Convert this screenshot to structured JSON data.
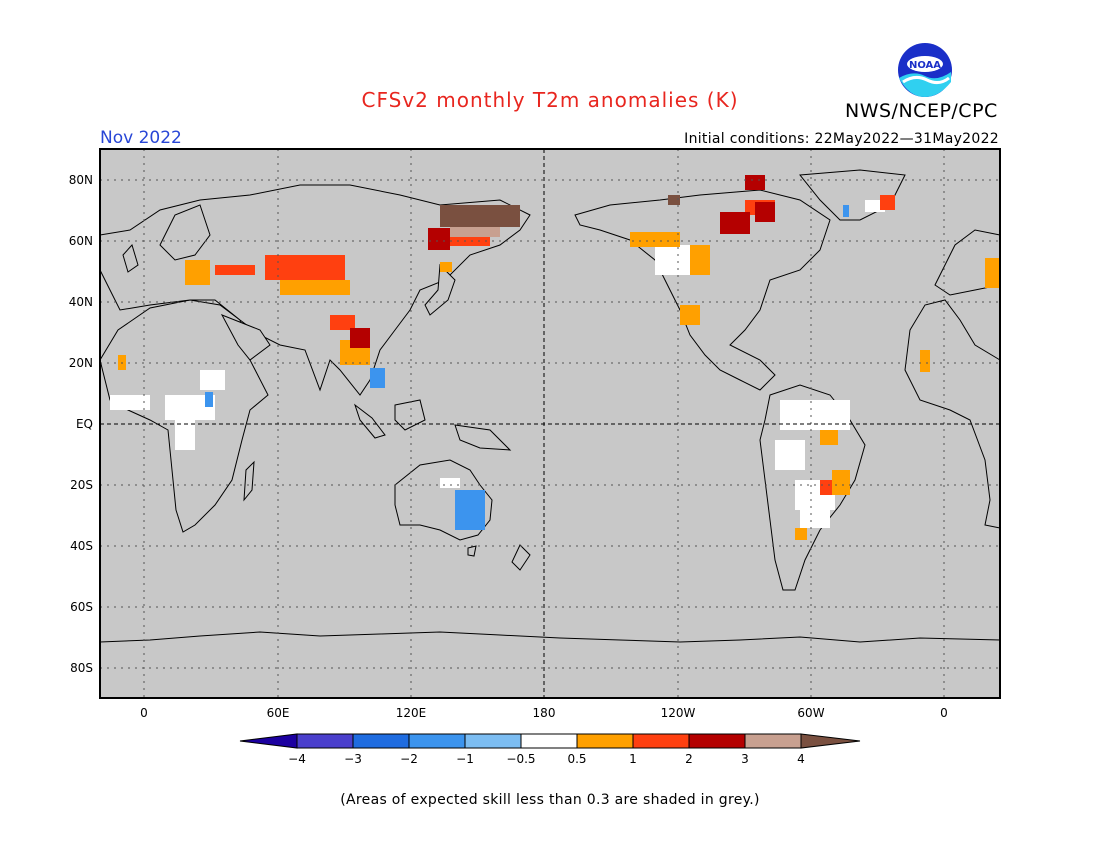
{
  "title": "CFSv2 monthly T2m anomalies (K)",
  "agency": "NWS/NCEP/CPC",
  "logo_text": "NOAA",
  "valid_month": "Nov 2022",
  "initial_conditions": "Initial conditions: 22May2022—31May2022",
  "footnote": "(Areas of expected skill less than 0.3 are shaded in grey.)",
  "map": {
    "projection": "equirectangular, centered near 150E",
    "lat_labels": [
      "80N",
      "60N",
      "40N",
      "20N",
      "EQ",
      "20S",
      "40S",
      "60S",
      "80S"
    ],
    "lon_labels": [
      "0",
      "60E",
      "120E",
      "180",
      "120W",
      "60W",
      "0"
    ],
    "background_color": "#c8c8c8",
    "gridlines": "dotted"
  },
  "colorbar": {
    "tick_labels": [
      "−4",
      "−3",
      "−2",
      "−1",
      "−0.5",
      "0.5",
      "1",
      "2",
      "3",
      "4"
    ],
    "colors": [
      "#1c00a0",
      "#4a3fcc",
      "#1f6ce0",
      "#3c94ee",
      "#7cbdf2",
      "#ffffff",
      "#ffa000",
      "#ff4010",
      "#b40000",
      "#c8a090",
      "#7a5040"
    ]
  },
  "anomaly_patches": [
    {
      "region": "Central Asia",
      "category": "1 to 2"
    },
    {
      "region": "Eastern Siberia",
      "category": "above 4"
    },
    {
      "region": "Northeastern Siberia",
      "category": "2 to 3"
    },
    {
      "region": "Southern China / Indochina",
      "category": "2 to 3"
    },
    {
      "region": "Alaska / NW Canada",
      "category": "0.5 to 1"
    },
    {
      "region": "Hudson Bay region",
      "category": "2 to 3"
    },
    {
      "region": "Eastern Australia",
      "category": "-1 to -2"
    },
    {
      "region": "Southern Brazil",
      "category": "0.5 to 1"
    }
  ]
}
